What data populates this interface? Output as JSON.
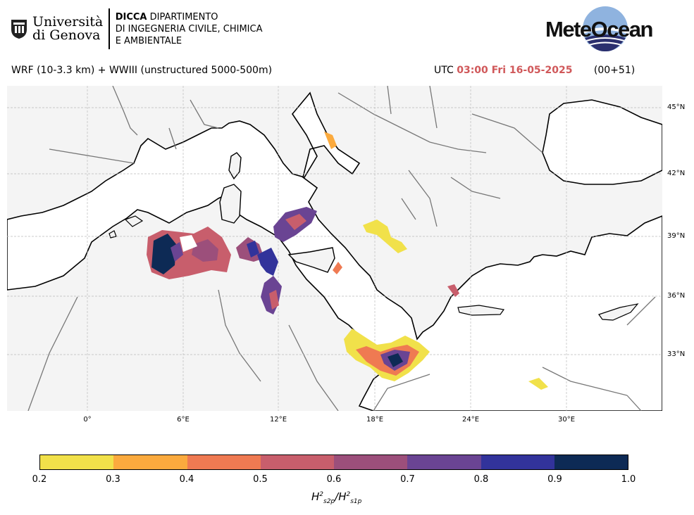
{
  "header": {
    "university_line1": "Università",
    "university_line2": "di Genova",
    "dept_line1_bold": "DICCA",
    "dept_line1_rest": " DIPARTIMENTO",
    "dept_line2": "DI INGEGNERIA CIVILE, CHIMICA",
    "dept_line3": "E AMBIENTALE",
    "brand": "MeteOcean"
  },
  "run": {
    "model_text": "WRF (10-3.3 km) + WWIII (unstructured 5000-500m)",
    "utc_label": "UTC",
    "valid_time": "03:00 Fri 16-05-2025",
    "lead": "(00+51)"
  },
  "map": {
    "lat_labels": [
      "45°N",
      "42°N",
      "39°N",
      "36°N",
      "33°N"
    ],
    "lon_labels": [
      "0°",
      "6°E",
      "12°E",
      "18°E",
      "24°E",
      "30°E"
    ],
    "land_color": "#f4f4f4",
    "sea_color": "#ffffff"
  },
  "colorbar": {
    "ticks": [
      "0.2",
      "0.3",
      "0.4",
      "0.5",
      "0.6",
      "0.7",
      "0.8",
      "0.9",
      "1.0"
    ],
    "colors": [
      "#f1e14a",
      "#fbaa3e",
      "#ef7a52",
      "#c85e6c",
      "#9c4f7b",
      "#6a4493",
      "#32339b",
      "#0d2a55"
    ],
    "label_H": "H",
    "label_num_sub": "s2p",
    "label_den_sub": "s1p",
    "label_sup": "2"
  }
}
